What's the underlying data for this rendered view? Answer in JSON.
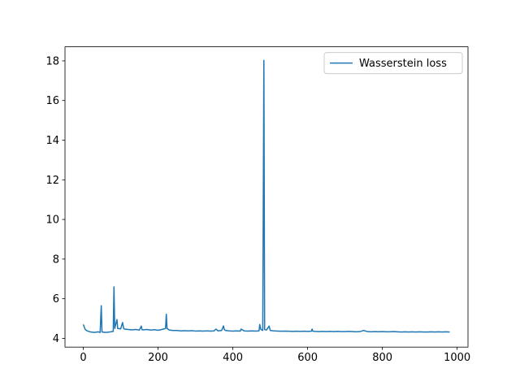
{
  "chart_data": {
    "type": "line",
    "x": [
      0,
      5,
      10,
      20,
      30,
      40,
      45,
      48,
      50,
      60,
      70,
      80,
      82,
      84,
      90,
      92,
      100,
      105,
      108,
      110,
      120,
      130,
      140,
      150,
      155,
      157,
      160,
      170,
      180,
      190,
      200,
      210,
      220,
      222,
      224,
      230,
      240,
      250,
      260,
      270,
      280,
      290,
      300,
      310,
      320,
      330,
      340,
      350,
      355,
      360,
      370,
      375,
      377,
      380,
      390,
      400,
      410,
      420,
      422,
      430,
      440,
      450,
      460,
      470,
      472,
      475,
      480,
      483,
      485,
      490,
      497,
      500,
      510,
      520,
      530,
      540,
      550,
      560,
      570,
      580,
      590,
      600,
      610,
      612,
      614,
      620,
      630,
      640,
      650,
      660,
      670,
      680,
      690,
      700,
      710,
      720,
      730,
      740,
      750,
      760,
      770,
      780,
      790,
      800,
      810,
      820,
      830,
      840,
      850,
      860,
      870,
      880,
      890,
      900,
      910,
      920,
      930,
      940,
      950,
      960,
      970,
      980
    ],
    "series": [
      {
        "name": "Wasserstein loss",
        "color": "#1f77b4",
        "values": [
          4.7,
          4.45,
          4.38,
          4.32,
          4.3,
          4.33,
          4.3,
          5.65,
          4.32,
          4.3,
          4.32,
          4.35,
          6.6,
          4.5,
          4.95,
          4.5,
          4.48,
          4.8,
          4.5,
          4.47,
          4.45,
          4.43,
          4.45,
          4.42,
          4.62,
          4.44,
          4.43,
          4.45,
          4.42,
          4.44,
          4.41,
          4.45,
          4.5,
          5.22,
          4.5,
          4.42,
          4.4,
          4.4,
          4.38,
          4.39,
          4.38,
          4.39,
          4.37,
          4.38,
          4.37,
          4.38,
          4.37,
          4.38,
          4.47,
          4.38,
          4.4,
          4.63,
          4.45,
          4.4,
          4.38,
          4.37,
          4.38,
          4.37,
          4.47,
          4.38,
          4.37,
          4.38,
          4.37,
          4.38,
          4.7,
          4.45,
          4.4,
          18.02,
          4.45,
          4.42,
          4.62,
          4.4,
          4.38,
          4.37,
          4.36,
          4.37,
          4.36,
          4.35,
          4.36,
          4.35,
          4.36,
          4.35,
          4.36,
          4.47,
          4.36,
          4.35,
          4.34,
          4.35,
          4.34,
          4.35,
          4.34,
          4.35,
          4.34,
          4.34,
          4.35,
          4.34,
          4.33,
          4.34,
          4.4,
          4.34,
          4.33,
          4.34,
          4.33,
          4.34,
          4.33,
          4.33,
          4.34,
          4.33,
          4.32,
          4.33,
          4.32,
          4.33,
          4.32,
          4.33,
          4.32,
          4.32,
          4.33,
          4.32,
          4.33,
          4.32,
          4.33,
          4.32
        ]
      }
    ],
    "xlim": [
      -49,
      1029
    ],
    "ylim": [
      3.56,
      18.71
    ],
    "xticks": [
      0,
      200,
      400,
      600,
      800,
      1000
    ],
    "yticks": [
      4,
      6,
      8,
      10,
      12,
      14,
      16,
      18
    ],
    "legend": "upper right"
  }
}
